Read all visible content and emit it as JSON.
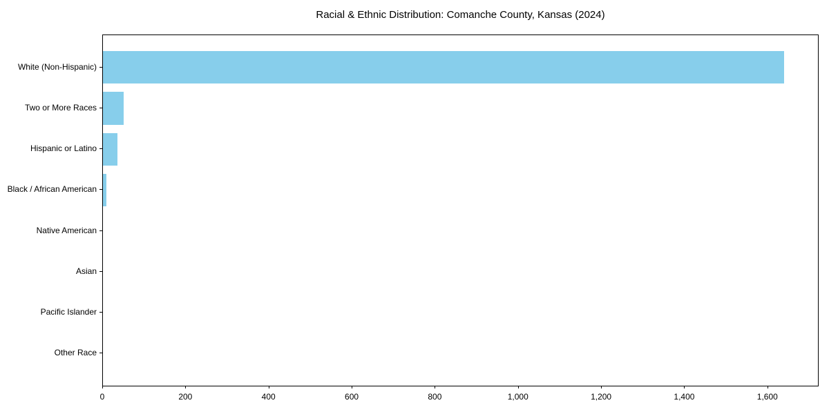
{
  "figure": {
    "background": "#ffffff"
  },
  "chart_data": {
    "type": "bar",
    "orientation": "horizontal",
    "title": "Racial & Ethnic Distribution: Comanche County, Kansas (2024)",
    "categories": [
      "White (Non-Hispanic)",
      "Two or More Races",
      "Hispanic or Latino",
      "Black / African American",
      "Native American",
      "Asian",
      "Pacific Islander",
      "Other Race"
    ],
    "values": [
      1638,
      50,
      35,
      8,
      0,
      0,
      0,
      0
    ],
    "bar_color": "#87CEEB",
    "axis_color": "#000000",
    "text_color": "#000000",
    "xlabel": "",
    "ylabel": "",
    "xlim": [
      0,
      1720
    ],
    "x_ticks": [
      0,
      200,
      400,
      600,
      800,
      1000,
      1200,
      1400,
      1600
    ],
    "x_tick_labels": [
      "0",
      "200",
      "400",
      "600",
      "800",
      "1,000",
      "1,200",
      "1,400",
      "1,600"
    ],
    "grid": false,
    "legend": null
  }
}
